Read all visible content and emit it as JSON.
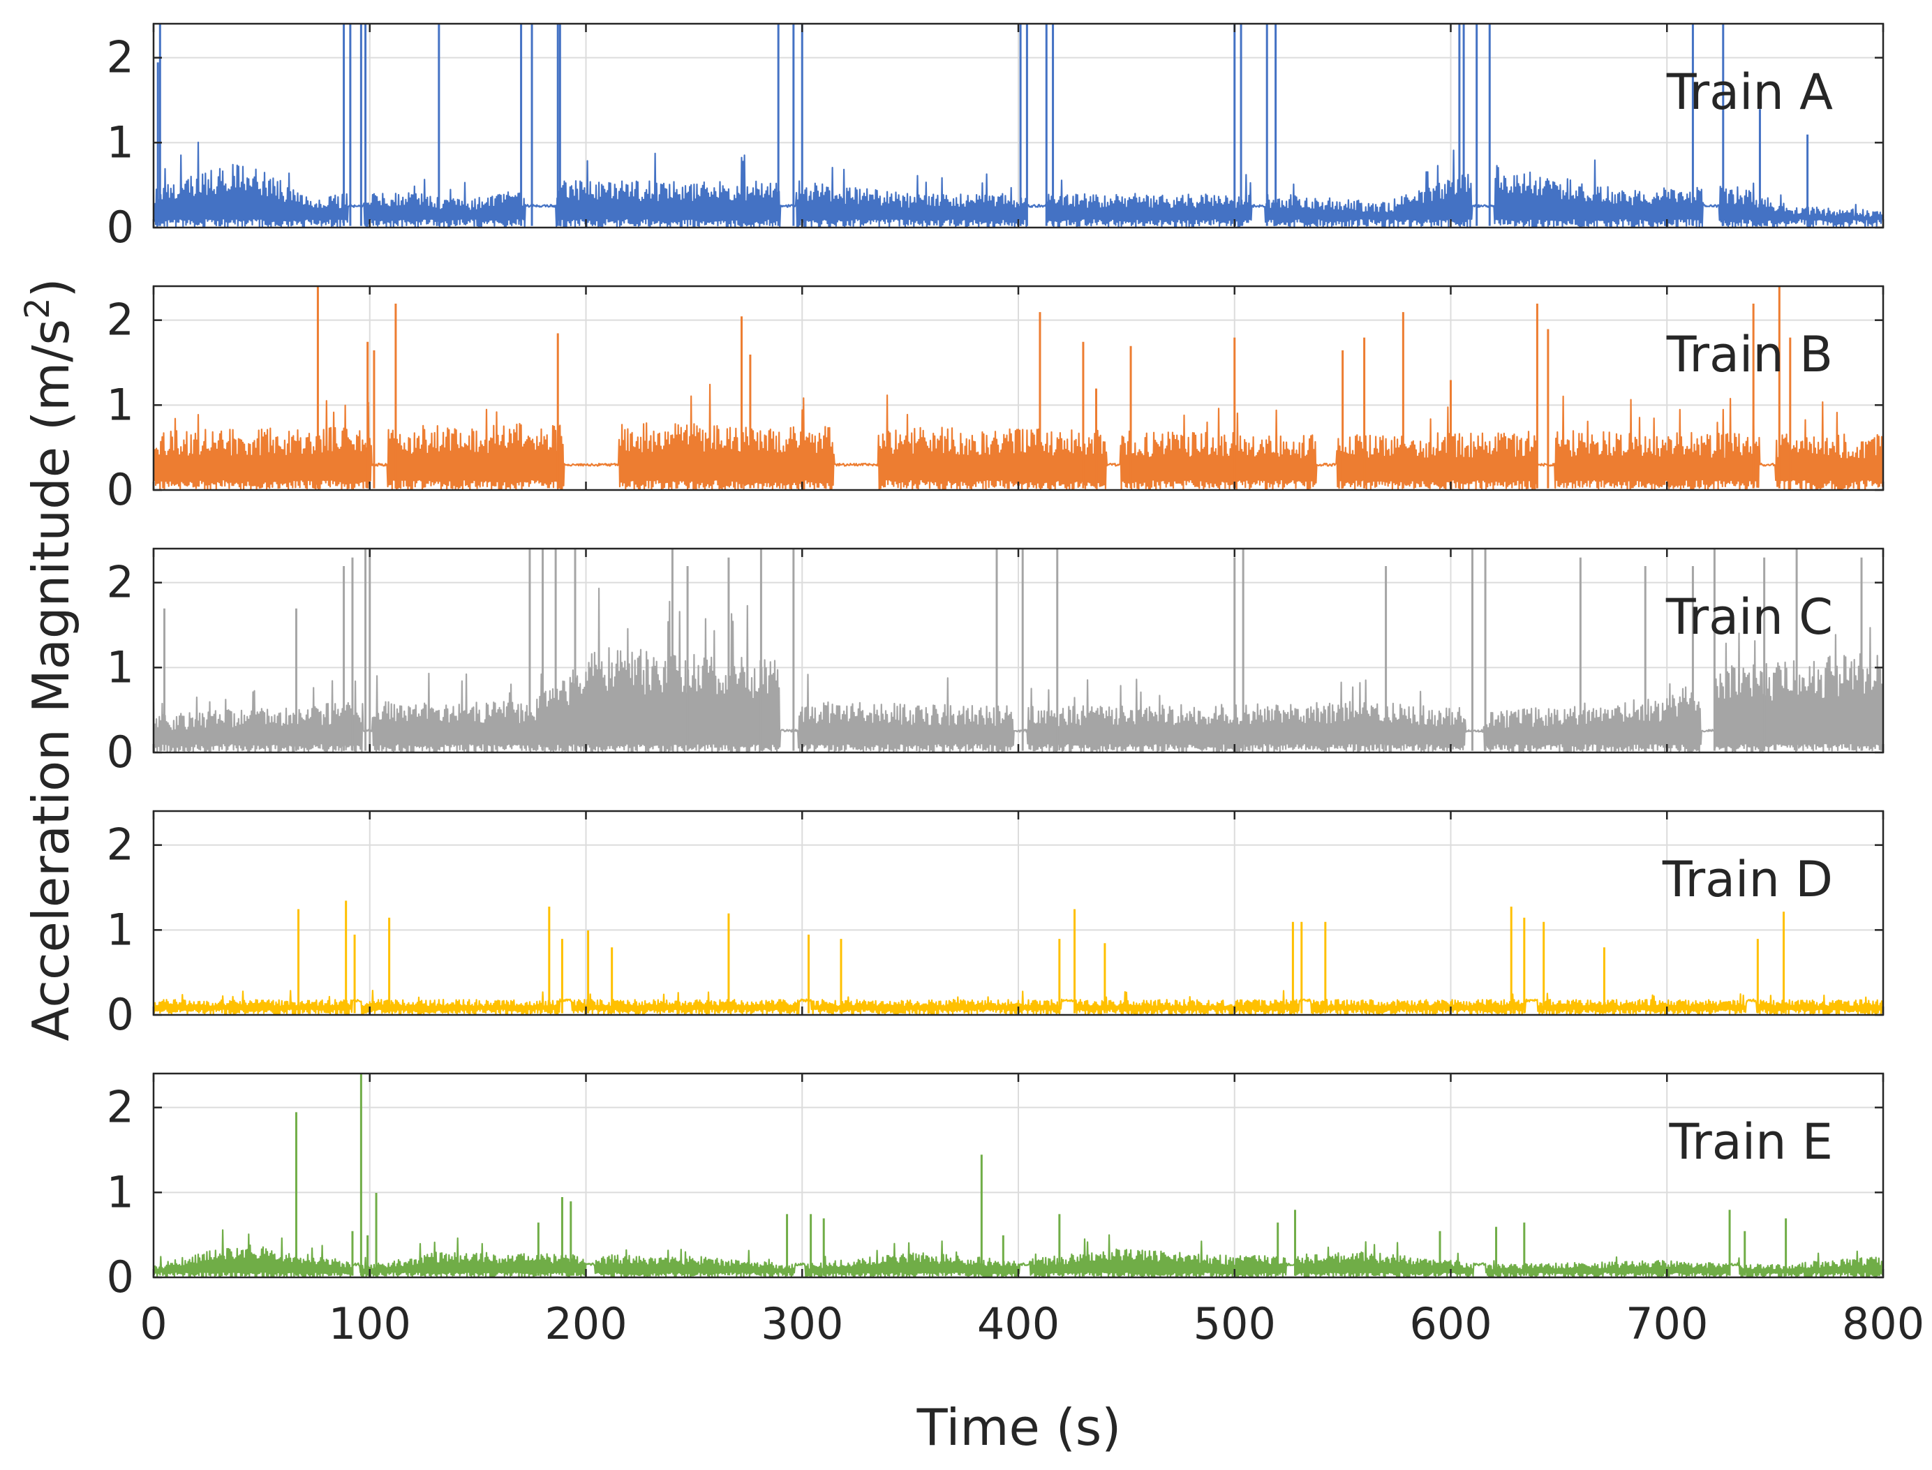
{
  "chart_data": {
    "type": "line",
    "xlabel": "Time (s)",
    "ylabel_main": "Acceleration Magnitude (m/s",
    "ylabel_sup": "2",
    "ylabel_close": ")",
    "xlim": [
      0,
      800
    ],
    "ylim": [
      0,
      2.4
    ],
    "x_ticks": [
      0,
      100,
      200,
      300,
      400,
      500,
      600,
      700,
      800
    ],
    "y_ticks": [
      0,
      1,
      2
    ],
    "grid": true,
    "legend": "none",
    "panels": [
      {
        "name": "Train A",
        "color": "#4472C4",
        "baseline": 0.3,
        "noise": 0.45,
        "segments": [
          [
            0,
            0.45
          ],
          [
            40,
            0.8
          ],
          [
            75,
            0.35
          ],
          [
            100,
            0.45
          ],
          [
            150,
            0.35
          ],
          [
            190,
            0.55
          ],
          [
            300,
            0.55
          ],
          [
            350,
            0.4
          ],
          [
            420,
            0.4
          ],
          [
            520,
            0.4
          ],
          [
            570,
            0.3
          ],
          [
            620,
            0.75
          ],
          [
            680,
            0.45
          ],
          [
            730,
            0.5
          ],
          [
            760,
            0.25
          ],
          [
            800,
            0.2
          ]
        ],
        "stops": [
          [
            90,
            97
          ],
          [
            172,
            186
          ],
          [
            290,
            297
          ],
          [
            404,
            413
          ],
          [
            508,
            514
          ],
          [
            610,
            620
          ],
          [
            717,
            724
          ]
        ],
        "spikes": [
          [
            2,
            1.95
          ],
          [
            3,
            2.4
          ],
          [
            88,
            2.4
          ],
          [
            91,
            2.4
          ],
          [
            96,
            2.4
          ],
          [
            98,
            2.4
          ],
          [
            132,
            2.4
          ],
          [
            170,
            2.4
          ],
          [
            175,
            2.4
          ],
          [
            187,
            2.4
          ],
          [
            188,
            2.4
          ],
          [
            289,
            2.4
          ],
          [
            296,
            2.4
          ],
          [
            300,
            2.4
          ],
          [
            401,
            2.4
          ],
          [
            404,
            2.4
          ],
          [
            413,
            2.4
          ],
          [
            416,
            2.4
          ],
          [
            500,
            2.4
          ],
          [
            503,
            2.4
          ],
          [
            515,
            2.4
          ],
          [
            519,
            2.4
          ],
          [
            604,
            2.4
          ],
          [
            606,
            2.4
          ],
          [
            612,
            2.4
          ],
          [
            618,
            2.4
          ],
          [
            712,
            2.4
          ],
          [
            726,
            2.4
          ],
          [
            743,
            1.4
          ],
          [
            765,
            1.1
          ]
        ]
      },
      {
        "name": "Train B",
        "color": "#ED7D31",
        "baseline": 0.35,
        "noise": 0.65,
        "segments": [
          [
            0,
            0.7
          ],
          [
            100,
            0.75
          ],
          [
            210,
            0.8
          ],
          [
            340,
            0.75
          ],
          [
            450,
            0.7
          ],
          [
            550,
            0.65
          ],
          [
            650,
            0.7
          ],
          [
            800,
            0.65
          ]
        ],
        "stops": [
          [
            101,
            108
          ],
          [
            190,
            215
          ],
          [
            315,
            335
          ],
          [
            441,
            447
          ],
          [
            538,
            547
          ],
          [
            640,
            648
          ],
          [
            743,
            750
          ]
        ],
        "spikes": [
          [
            76,
            2.4
          ],
          [
            99,
            1.75
          ],
          [
            102,
            1.65
          ],
          [
            112,
            2.2
          ],
          [
            187,
            1.85
          ],
          [
            272,
            2.05
          ],
          [
            276,
            1.6
          ],
          [
            410,
            2.1
          ],
          [
            430,
            1.75
          ],
          [
            436,
            1.2
          ],
          [
            452,
            1.7
          ],
          [
            500,
            1.8
          ],
          [
            550,
            1.65
          ],
          [
            560,
            1.8
          ],
          [
            578,
            2.1
          ],
          [
            600,
            1.3
          ],
          [
            640,
            2.2
          ],
          [
            645,
            1.9
          ],
          [
            740,
            2.2
          ],
          [
            752,
            2.4
          ],
          [
            757,
            1.8
          ]
        ]
      },
      {
        "name": "Train C",
        "color": "#A5A5A5",
        "baseline": 0.3,
        "noise": 0.45,
        "segments": [
          [
            0,
            0.45
          ],
          [
            60,
            0.55
          ],
          [
            100,
            0.6
          ],
          [
            175,
            0.6
          ],
          [
            205,
            1.25
          ],
          [
            290,
            1.1
          ],
          [
            300,
            0.6
          ],
          [
            390,
            0.55
          ],
          [
            450,
            0.55
          ],
          [
            560,
            0.6
          ],
          [
            620,
            0.5
          ],
          [
            700,
            0.65
          ],
          [
            722,
            1.0
          ],
          [
            800,
            1.2
          ]
        ],
        "stops": [
          [
            97,
            101
          ],
          [
            290,
            298
          ],
          [
            398,
            404
          ],
          [
            607,
            615
          ],
          [
            716,
            722
          ]
        ],
        "spikes": [
          [
            5,
            1.7
          ],
          [
            66,
            1.7
          ],
          [
            88,
            2.2
          ],
          [
            92,
            2.3
          ],
          [
            98,
            2.4
          ],
          [
            100,
            2.4
          ],
          [
            174,
            2.4
          ],
          [
            180,
            2.4
          ],
          [
            186,
            2.4
          ],
          [
            195,
            2.4
          ],
          [
            240,
            2.4
          ],
          [
            247,
            2.2
          ],
          [
            266,
            2.3
          ],
          [
            281,
            2.4
          ],
          [
            296,
            2.4
          ],
          [
            390,
            2.4
          ],
          [
            402,
            2.4
          ],
          [
            418,
            2.4
          ],
          [
            500,
            2.3
          ],
          [
            504,
            2.4
          ],
          [
            570,
            2.2
          ],
          [
            610,
            2.4
          ],
          [
            616,
            2.4
          ],
          [
            660,
            2.3
          ],
          [
            690,
            2.2
          ],
          [
            712,
            2.2
          ],
          [
            722,
            2.4
          ],
          [
            745,
            2.3
          ],
          [
            760,
            2.4
          ],
          [
            790,
            2.3
          ]
        ]
      },
      {
        "name": "Train D",
        "color": "#FFC000",
        "baseline": 0.2,
        "noise": 0.16,
        "segments": [
          [
            0,
            0.18
          ],
          [
            800,
            0.18
          ]
        ],
        "stops": [
          [
            92,
            96
          ],
          [
            188,
            193
          ],
          [
            299,
            304
          ],
          [
            420,
            426
          ],
          [
            530,
            535
          ],
          [
            635,
            640
          ],
          [
            737,
            741
          ]
        ],
        "spikes": [
          [
            67,
            1.25
          ],
          [
            89,
            1.35
          ],
          [
            93,
            0.95
          ],
          [
            109,
            1.15
          ],
          [
            183,
            1.28
          ],
          [
            189,
            0.9
          ],
          [
            201,
            1.0
          ],
          [
            212,
            0.8
          ],
          [
            266,
            1.2
          ],
          [
            303,
            0.95
          ],
          [
            318,
            0.9
          ],
          [
            419,
            0.9
          ],
          [
            426,
            1.25
          ],
          [
            440,
            0.85
          ],
          [
            527,
            1.1
          ],
          [
            531,
            1.1
          ],
          [
            542,
            1.1
          ],
          [
            628,
            1.28
          ],
          [
            634,
            1.15
          ],
          [
            643,
            1.1
          ],
          [
            671,
            0.8
          ],
          [
            742,
            0.9
          ],
          [
            754,
            1.22
          ]
        ]
      },
      {
        "name": "Train E",
        "color": "#70AD47",
        "baseline": 0.18,
        "noise": 0.14,
        "segments": [
          [
            0,
            0.15
          ],
          [
            40,
            0.4
          ],
          [
            65,
            0.3
          ],
          [
            100,
            0.15
          ],
          [
            130,
            0.3
          ],
          [
            250,
            0.25
          ],
          [
            300,
            0.15
          ],
          [
            350,
            0.3
          ],
          [
            400,
            0.2
          ],
          [
            450,
            0.35
          ],
          [
            500,
            0.25
          ],
          [
            560,
            0.3
          ],
          [
            620,
            0.15
          ],
          [
            700,
            0.2
          ],
          [
            750,
            0.15
          ],
          [
            800,
            0.25
          ]
        ],
        "stops": [
          [
            92,
            95
          ],
          [
            200,
            204
          ],
          [
            297,
            301
          ],
          [
            401,
            405
          ],
          [
            524,
            528
          ],
          [
            611,
            616
          ],
          [
            729,
            733
          ]
        ],
        "spikes": [
          [
            66,
            1.95
          ],
          [
            92,
            0.55
          ],
          [
            96,
            2.4
          ],
          [
            99,
            0.5
          ],
          [
            103,
            1.0
          ],
          [
            178,
            0.65
          ],
          [
            189,
            0.95
          ],
          [
            193,
            0.9
          ],
          [
            293,
            0.75
          ],
          [
            304,
            0.75
          ],
          [
            310,
            0.7
          ],
          [
            383,
            1.45
          ],
          [
            393,
            0.5
          ],
          [
            419,
            0.75
          ],
          [
            520,
            0.65
          ],
          [
            528,
            0.8
          ],
          [
            595,
            0.55
          ],
          [
            621,
            0.6
          ],
          [
            634,
            0.65
          ],
          [
            729,
            0.8
          ],
          [
            736,
            0.55
          ],
          [
            755,
            0.7
          ]
        ]
      }
    ]
  }
}
